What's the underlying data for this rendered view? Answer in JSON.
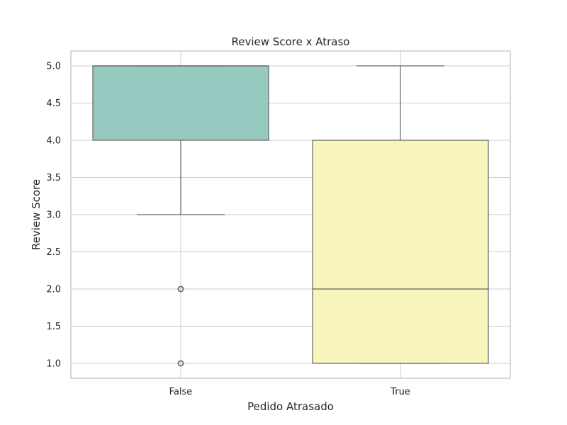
{
  "chart_data": {
    "type": "box",
    "title": "Review Score x Atraso",
    "xlabel": "Pedido Atrasado",
    "ylabel": "Review Score",
    "ylim": [
      0.8,
      5.2
    ],
    "yticks": [
      "1.0",
      "1.5",
      "2.0",
      "2.5",
      "3.0",
      "3.5",
      "4.0",
      "4.5",
      "5.0"
    ],
    "grid": true,
    "categories": [
      "False",
      "True"
    ],
    "boxes": [
      {
        "category": "False",
        "color": "#96c9c0",
        "q1": 4.0,
        "median": 5.0,
        "q3": 5.0,
        "whisker_low": 3.0,
        "whisker_high": 5.0,
        "outliers": [
          2.0,
          1.0
        ]
      },
      {
        "category": "True",
        "color": "#f7f5bc",
        "q1": 1.0,
        "median": 2.0,
        "q3": 4.0,
        "whisker_low": 1.0,
        "whisker_high": 5.0,
        "outliers": []
      }
    ],
    "colors": {
      "grid": "#cccccc",
      "frame": "#cccccc",
      "line": "#636363"
    }
  }
}
